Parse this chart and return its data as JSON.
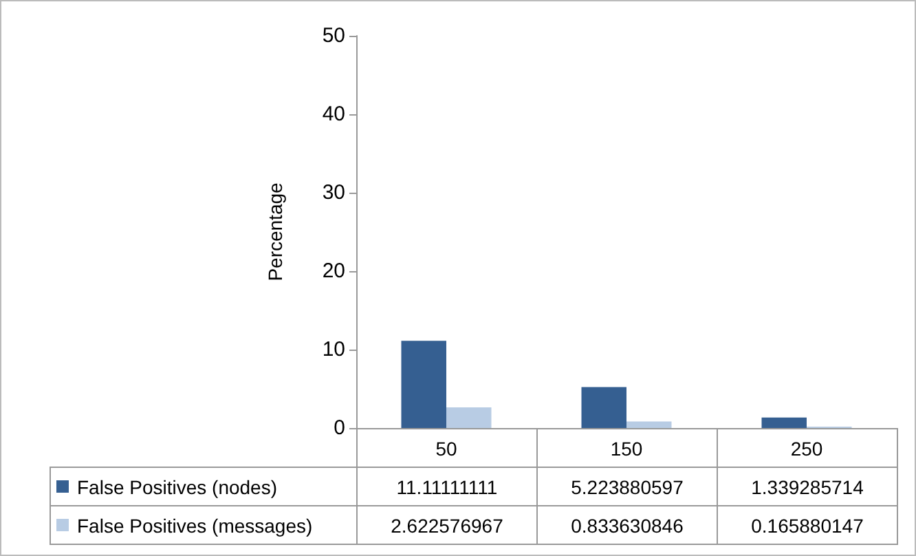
{
  "chart_data": {
    "type": "bar",
    "ylabel": "Percentage",
    "categories": [
      "50",
      "150",
      "250"
    ],
    "series": [
      {
        "name": "False Positives (nodes)",
        "color": "#355f91",
        "values": [
          11.11111111,
          5.223880597,
          1.339285714
        ]
      },
      {
        "name": "False Positives (messages)",
        "color": "#b8cce4",
        "values": [
          2.622576967,
          0.833630846,
          0.165880147
        ]
      }
    ],
    "ylim": [
      0,
      50
    ],
    "yticks": [
      0,
      10,
      20,
      30,
      40,
      50
    ],
    "grid": false,
    "legend": "bottom",
    "data_labels": true
  }
}
